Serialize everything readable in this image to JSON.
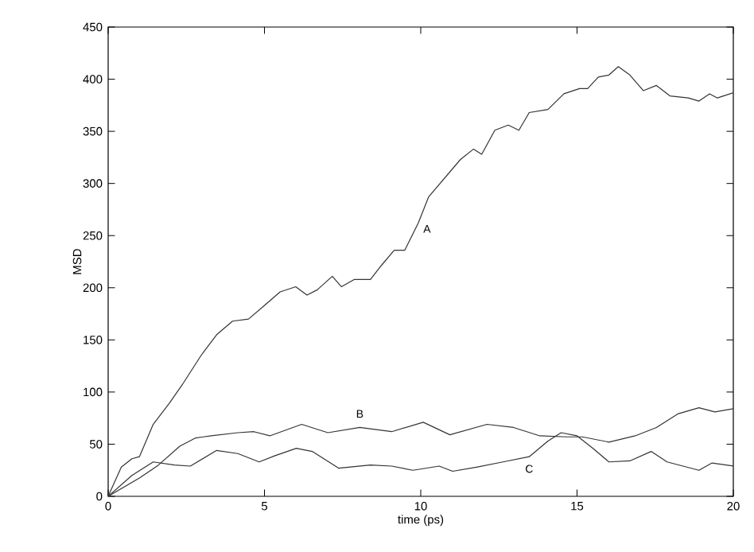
{
  "chart_data": {
    "type": "line",
    "xlabel": "time (ps)",
    "ylabel": "MSD",
    "xlim": [
      0,
      20
    ],
    "ylim": [
      0,
      450
    ],
    "xticks": [
      0,
      5,
      10,
      15,
      20
    ],
    "yticks": [
      0,
      50,
      100,
      150,
      200,
      250,
      300,
      350,
      400,
      450
    ],
    "marker": "none",
    "line_style": "solid",
    "series": [
      {
        "name": "A",
        "color": "#333333",
        "x": [
          0,
          0.42,
          0.76,
          1.0,
          1.44,
          1.95,
          2.37,
          2.97,
          3.47,
          3.98,
          4.49,
          5.0,
          5.5,
          6.0,
          6.36,
          6.69,
          7.17,
          7.46,
          7.88,
          8.39,
          8.73,
          9.15,
          9.49,
          9.92,
          10.25,
          10.76,
          11.27,
          11.69,
          11.95,
          12.37,
          12.8,
          13.14,
          13.47,
          14.07,
          14.58,
          15.08,
          15.34,
          15.68,
          16.02,
          16.32,
          16.69,
          17.12,
          17.54,
          17.97,
          18.56,
          18.9,
          19.24,
          19.49,
          20
        ],
        "values": [
          0,
          28,
          36,
          38,
          69,
          89,
          107,
          135,
          155,
          168,
          170,
          183,
          196,
          201,
          193,
          198,
          211,
          201,
          208,
          208,
          221,
          236,
          236,
          262,
          287,
          305,
          323,
          333,
          328,
          351,
          356,
          351,
          368,
          371,
          386,
          391,
          391,
          402,
          404,
          412,
          404,
          389,
          394,
          384,
          382,
          379,
          386,
          382,
          387
        ]
      },
      {
        "name": "B",
        "color": "#333333",
        "x": [
          0,
          1.02,
          1.61,
          2.29,
          2.8,
          3.3,
          4.15,
          4.66,
          5.17,
          6.19,
          7.03,
          8.05,
          9.07,
          10.08,
          10.93,
          12.12,
          12.97,
          13.81,
          14.66,
          15.17,
          16.02,
          16.86,
          17.54,
          18.22,
          18.9,
          19.41,
          20
        ],
        "values": [
          0,
          18,
          30,
          48,
          56,
          58,
          61,
          62,
          58,
          69,
          61,
          66,
          62,
          71,
          59,
          69,
          66,
          58,
          57,
          57,
          52,
          58,
          66,
          79,
          85,
          81,
          84
        ]
      },
      {
        "name": "C",
        "color": "#333333",
        "x": [
          0,
          0.76,
          1.44,
          2.12,
          2.63,
          3.47,
          4.15,
          4.83,
          5.34,
          6.02,
          6.53,
          7.37,
          8.39,
          9.07,
          9.75,
          10.59,
          11.02,
          11.78,
          12.63,
          13.47,
          14.07,
          14.49,
          15.0,
          15.51,
          16.02,
          16.69,
          17.37,
          17.88,
          18.9,
          19.32,
          20
        ],
        "values": [
          0,
          20,
          33,
          30,
          29,
          44,
          41,
          33,
          39,
          46,
          43,
          27,
          30,
          29,
          25,
          29,
          24,
          28,
          33,
          38,
          53,
          61,
          58,
          46,
          33,
          34,
          43,
          33,
          25,
          32,
          29
        ]
      }
    ]
  }
}
